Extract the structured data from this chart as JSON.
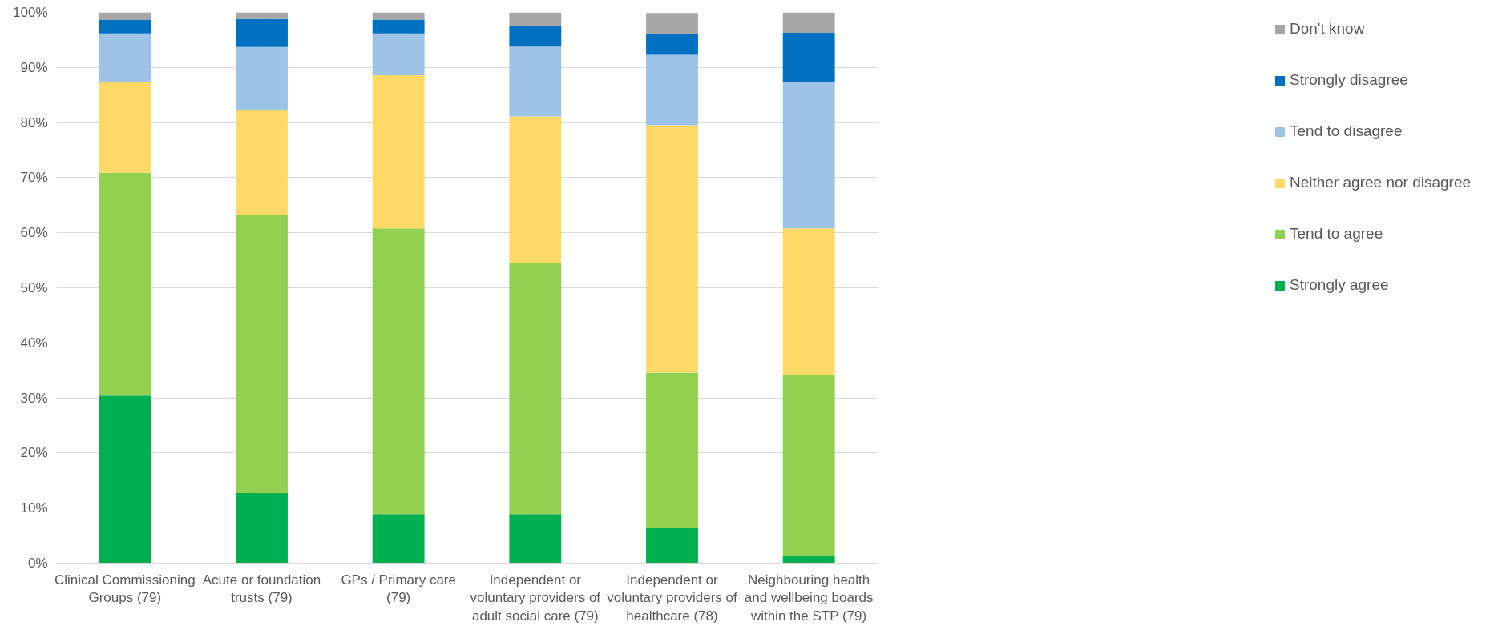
{
  "chart_data": {
    "type": "bar",
    "stacked": true,
    "categories": [
      "Clinical Commissioning Groups (79)",
      "Acute or foundation trusts (79)",
      "GPs / Primary care (79)",
      "Independent or voluntary providers of adult social care (79)",
      "Independent or voluntary providers of healthcare (78)",
      "Neighbouring health and wellbeing boards within the STP (79)"
    ],
    "series": [
      {
        "name": "Strongly agree",
        "color": "#00b050",
        "values": [
          30.4,
          12.7,
          8.9,
          8.9,
          6.4,
          1.3
        ]
      },
      {
        "name": "Tend to agree",
        "color": "#92d050",
        "values": [
          40.5,
          50.6,
          51.9,
          45.6,
          28.2,
          32.9
        ]
      },
      {
        "name": "Neither agree nor disagree",
        "color": "#ffd966",
        "values": [
          16.4,
          19.0,
          27.8,
          26.6,
          44.9,
          26.6
        ]
      },
      {
        "name": "Tend to disagree",
        "color": "#9dc3e6",
        "values": [
          8.9,
          11.4,
          7.6,
          12.7,
          12.8,
          26.6
        ]
      },
      {
        "name": "Strongly disagree",
        "color": "#0070c0",
        "values": [
          2.5,
          5.1,
          2.5,
          3.8,
          3.8,
          8.9
        ]
      },
      {
        "name": "Don't know",
        "color": "#a6a6a6",
        "values": [
          1.3,
          1.3,
          1.3,
          2.5,
          3.8,
          3.8
        ]
      }
    ],
    "ylim": [
      0,
      100
    ],
    "yticks": [
      {
        "value": 0,
        "label": "0%"
      },
      {
        "value": 10,
        "label": "10%"
      },
      {
        "value": 20,
        "label": "20%"
      },
      {
        "value": 30,
        "label": "30%"
      },
      {
        "value": 40,
        "label": "40%"
      },
      {
        "value": 50,
        "label": "50%"
      },
      {
        "value": 60,
        "label": "60%"
      },
      {
        "value": 70,
        "label": "70%"
      },
      {
        "value": 80,
        "label": "80%"
      },
      {
        "value": 90,
        "label": "90%"
      },
      {
        "value": 100,
        "label": "100%"
      }
    ],
    "grid": "y",
    "legend": "right"
  }
}
